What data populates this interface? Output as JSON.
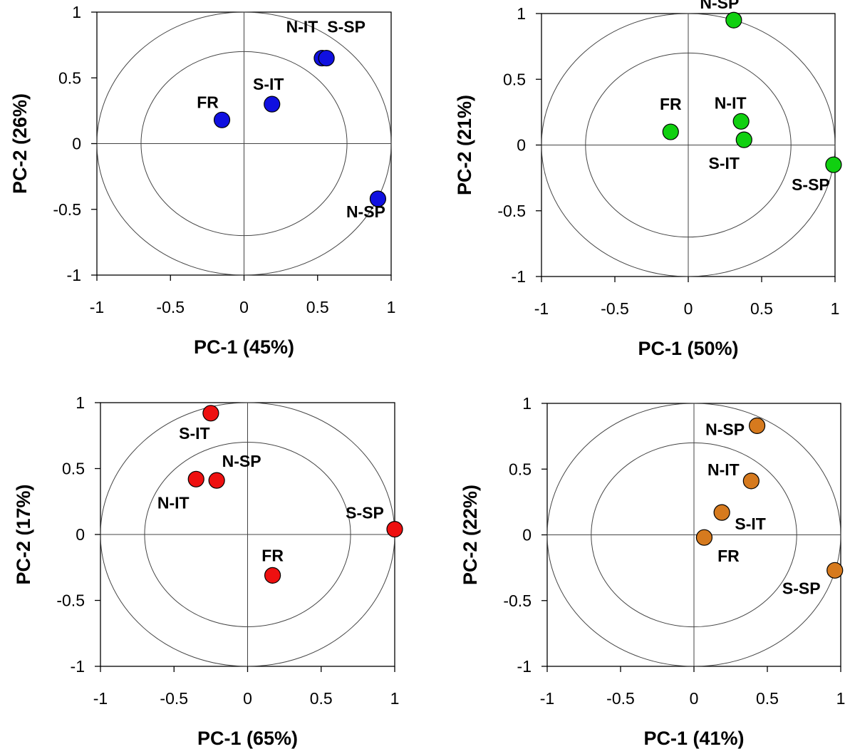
{
  "chart_data": [
    {
      "type": "scatter",
      "xlabel": "PC-1 (45%)",
      "ylabel": "PC-2 (26%)",
      "xlim": [
        -1,
        1
      ],
      "ylim": [
        -1,
        1
      ],
      "xticks": [
        "-1",
        "-0.5",
        "0",
        "0.5",
        "1"
      ],
      "yticks": [
        "1",
        "0.5",
        "0",
        "-0.5",
        "-1"
      ],
      "circle_radii": [
        1,
        0.7
      ],
      "grid": false,
      "marker_color": "#1010e0",
      "points": [
        {
          "label": "FR",
          "x": -0.15,
          "y": 0.18
        },
        {
          "label": "S-IT",
          "x": 0.19,
          "y": 0.3
        },
        {
          "label": "N-IT",
          "x": 0.53,
          "y": 0.65
        },
        {
          "label": "S-SP",
          "x": 0.56,
          "y": 0.65
        },
        {
          "label": "N-SP",
          "x": 0.91,
          "y": -0.42
        }
      ]
    },
    {
      "type": "scatter",
      "xlabel": "PC-1 (50%)",
      "ylabel": "PC-2 (21%)",
      "xlim": [
        -1,
        1
      ],
      "ylim": [
        -1,
        1
      ],
      "xticks": [
        "-1",
        "-0.5",
        "0",
        "0.5",
        "1"
      ],
      "yticks": [
        "1",
        "0.5",
        "0",
        "-0.5",
        "-1"
      ],
      "circle_radii": [
        1,
        0.7
      ],
      "grid": false,
      "marker_color": "#10d010",
      "points": [
        {
          "label": "N-SP",
          "x": 0.31,
          "y": 0.95
        },
        {
          "label": "FR",
          "x": -0.12,
          "y": 0.1
        },
        {
          "label": "N-IT",
          "x": 0.36,
          "y": 0.18
        },
        {
          "label": "S-IT",
          "x": 0.38,
          "y": 0.04
        },
        {
          "label": "S-SP",
          "x": 0.99,
          "y": -0.15
        }
      ]
    },
    {
      "type": "scatter",
      "xlabel": "PC-1 (65%)",
      "ylabel": "PC-2 (17%)",
      "xlim": [
        -1,
        1
      ],
      "ylim": [
        -1,
        1
      ],
      "xticks": [
        "-1",
        "-0.5",
        "0",
        "0.5",
        "1"
      ],
      "yticks": [
        "1",
        "0.5",
        "0",
        "-0.5",
        "-1"
      ],
      "circle_radii": [
        1,
        0.7
      ],
      "grid": false,
      "marker_color": "#ee1010",
      "points": [
        {
          "label": "S-IT",
          "x": -0.25,
          "y": 0.92
        },
        {
          "label": "N-SP",
          "x": -0.21,
          "y": 0.41
        },
        {
          "label": "N-IT",
          "x": -0.35,
          "y": 0.42
        },
        {
          "label": "S-SP",
          "x": 1.0,
          "y": 0.04
        },
        {
          "label": "FR",
          "x": 0.17,
          "y": -0.31
        }
      ]
    },
    {
      "type": "scatter",
      "xlabel": "PC-1 (41%)",
      "ylabel": "PC-2 (22%)",
      "xlim": [
        -1,
        1
      ],
      "ylim": [
        -1,
        1
      ],
      "xticks": [
        "-1",
        "-0.5",
        "0",
        "0.5",
        "1"
      ],
      "yticks": [
        "1",
        "0.5",
        "0",
        "-0.5",
        "-1"
      ],
      "circle_radii": [
        1,
        0.7
      ],
      "grid": false,
      "marker_color": "#d67a1e",
      "points": [
        {
          "label": "N-SP",
          "x": 0.43,
          "y": 0.83
        },
        {
          "label": "N-IT",
          "x": 0.39,
          "y": 0.41
        },
        {
          "label": "S-IT",
          "x": 0.19,
          "y": 0.17
        },
        {
          "label": "FR",
          "x": 0.07,
          "y": -0.02
        },
        {
          "label": "S-SP",
          "x": 0.96,
          "y": -0.27
        }
      ]
    }
  ]
}
